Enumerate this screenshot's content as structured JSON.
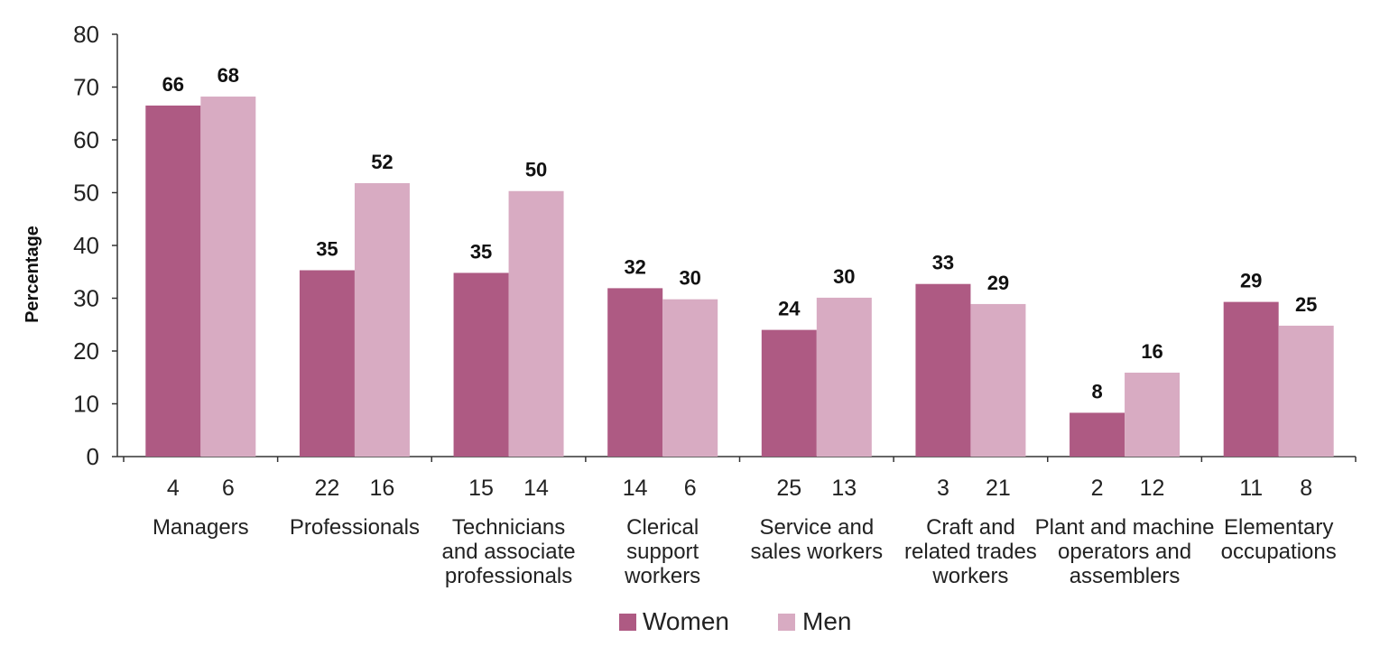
{
  "chart_data": {
    "type": "bar",
    "ylabel": "Percentage",
    "xlabel": "",
    "ylim": [
      0,
      80
    ],
    "yticks": [
      0,
      10,
      20,
      30,
      40,
      50,
      60,
      70,
      80
    ],
    "categories": [
      [
        "Managers"
      ],
      [
        "Professionals"
      ],
      [
        "Technicians",
        "and associate",
        "professionals"
      ],
      [
        "Clerical",
        "support",
        "workers"
      ],
      [
        "Service and",
        "sales workers"
      ],
      [
        "Craft and",
        "related trades",
        "workers"
      ],
      [
        "Plant and machine",
        "operators and",
        "assemblers"
      ],
      [
        "Elementary",
        "occupations"
      ]
    ],
    "series": [
      {
        "name": "Women",
        "color": "#ae5a83",
        "values": [
          66,
          35,
          35,
          32,
          24,
          33,
          8,
          29
        ],
        "plotted": [
          66.5,
          35.3,
          34.8,
          31.9,
          24.0,
          32.7,
          8.3,
          29.3
        ],
        "shares": [
          "4",
          "22",
          "15",
          "14",
          "25",
          "3",
          "2",
          "11"
        ]
      },
      {
        "name": "Men",
        "color": "#d8abc2",
        "values": [
          68,
          52,
          50,
          30,
          30,
          29,
          16,
          25
        ],
        "plotted": [
          68.2,
          51.8,
          50.3,
          29.8,
          30.1,
          28.9,
          15.9,
          24.8
        ],
        "shares": [
          "6",
          "16",
          "14",
          "6",
          "13",
          "21",
          "12",
          "8"
        ]
      }
    ],
    "legend": {
      "position": "bottom-center"
    },
    "grid": false
  }
}
